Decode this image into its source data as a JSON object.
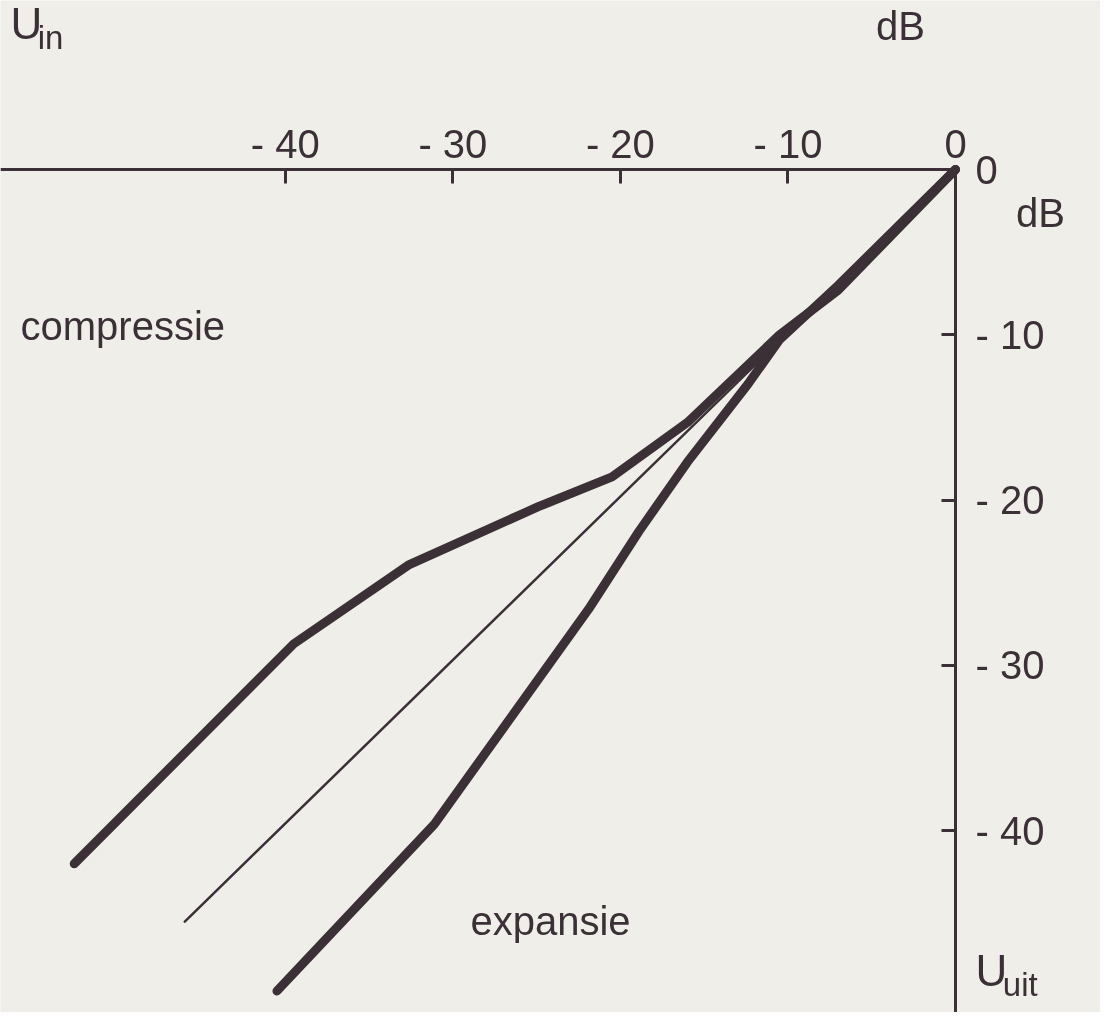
{
  "chart_data": {
    "type": "line",
    "xlabel": "U$_{in}$",
    "ylabel": "U$_{uit}$",
    "xlim": [
      -57,
      0
    ],
    "ylim": [
      -51,
      0
    ],
    "xticks": [
      -40,
      -30,
      -20,
      -10,
      0
    ],
    "yticks": [
      0,
      -10,
      -20,
      -30,
      -40
    ],
    "grid": false,
    "marker": "none",
    "line_style": "solid",
    "series": [
      {
        "color": "#3b3036",
        "x": [
          -52.6,
          -39.5,
          -32.6,
          -24.9,
          -20.5,
          -16,
          -10.5,
          -7,
          0
        ],
        "values": [
          -42,
          -28.7,
          -23.9,
          -20.4,
          -18.6,
          -15.3,
          -10,
          -7.3,
          0
        ]
      },
      {
        "color": "#3b3036",
        "x": [
          -46,
          0
        ],
        "values": [
          -45.5,
          0
        ]
      },
      {
        "color": "#3b3036",
        "x": [
          -40.5,
          -31.1,
          -21.9,
          -18.9,
          -16,
          -12.4,
          -10.5,
          -7,
          0
        ],
        "values": [
          -49.7,
          -39.6,
          -26.6,
          -21.9,
          -17.7,
          -13,
          -10.3,
          -7,
          0
        ]
      }
    ],
    "annotations": [
      "dB",
      "dB",
      "compressie",
      "expansie"
    ]
  }
}
